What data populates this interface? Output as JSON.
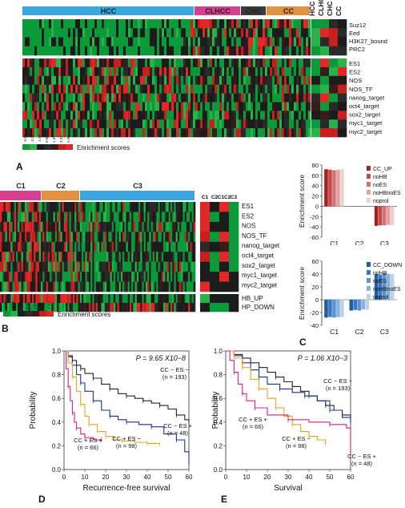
{
  "panel_letters": {
    "a": "A",
    "b": "B",
    "c": "C",
    "d": "D",
    "e": "E"
  },
  "panel_a": {
    "groups": [
      {
        "label": "HCC",
        "color": "#3aa6dd"
      },
      {
        "label": "CLHCC",
        "color": "#d63f8f"
      },
      {
        "label": "CHC",
        "color": "#3a3a3a"
      },
      {
        "label": "CC",
        "color": "#e0913f"
      }
    ],
    "summary_columns": [
      "HCC",
      "CLHCC",
      "CHC",
      "CC"
    ],
    "row_labels_top": [
      "Suz12",
      "Eed",
      "H3K27_bound",
      "PRC2"
    ],
    "row_labels_bottom": [
      "ES1",
      "ES2",
      "NOS",
      "NOS_TF",
      "nanog_target",
      "oct4_target",
      "sox2_target",
      "myc1_target",
      "myc2_target"
    ],
    "scale_ticks": [
      "-5.00",
      "-3.33",
      "-1.67",
      "0.00",
      "1.67",
      "3.33",
      "5.00"
    ],
    "scale_label": "Enrichment scores"
  },
  "panel_b": {
    "groups": [
      {
        "label": "C1",
        "color": "#d63f8f"
      },
      {
        "label": "C2",
        "color": "#e0913f"
      },
      {
        "label": "C3",
        "color": "#3aa6dd"
      }
    ],
    "summary_columns": [
      "C1",
      "C2",
      "C1C2",
      "C3"
    ],
    "row_labels_top": [
      "ES1",
      "ES2",
      "NOS",
      "NOS_TF",
      "nanog_target",
      "oct4_target",
      "sox2_target",
      "myc1_target",
      "myc2_target"
    ],
    "row_labels_bottom": [
      "HB_UP",
      "HP_DOWN"
    ],
    "scale_ticks": [
      "-5.00",
      "-3.33",
      "-1.67",
      "0.00",
      "1.67",
      "3.33",
      "5.00"
    ],
    "scale_label": "Enrichment scores"
  },
  "chart_data": [
    {
      "type": "bar",
      "panel": "C (top)",
      "ylabel": "Enrichment score",
      "ylim": [
        -60,
        80
      ],
      "yticks": [
        -60,
        -40,
        -20,
        0,
        20,
        40,
        60,
        80
      ],
      "categories": [
        "C1",
        "C2",
        "C3"
      ],
      "series": [
        {
          "name": "CC_UP",
          "color": "#a9201f",
          "values": [
            72,
            0,
            -38
          ]
        },
        {
          "name": "noHB",
          "color": "#c04a49",
          "values": [
            71,
            0,
            -37
          ]
        },
        {
          "name": "noES",
          "color": "#cf7472",
          "values": [
            70,
            0,
            -37
          ]
        },
        {
          "name": "noHBnoES",
          "color": "#dea2a0",
          "values": [
            71,
            0,
            -36
          ]
        },
        {
          "name": "noprol",
          "color": "#ecd0ce",
          "values": [
            72,
            0,
            -37
          ]
        }
      ],
      "legend": "top-right"
    },
    {
      "type": "bar",
      "panel": "C (bottom)",
      "ylabel": "Enrichment score",
      "ylim": [
        -40,
        60
      ],
      "yticks": [
        -40,
        -20,
        0,
        20,
        40,
        60
      ],
      "categories": [
        "C1",
        "C2",
        "C3"
      ],
      "series": [
        {
          "name": "CC_DOWN",
          "color": "#1f5fa8",
          "values": [
            -28,
            -17,
            40
          ]
        },
        {
          "name": "noHB",
          "color": "#3a78bf",
          "values": [
            -27,
            -16,
            39
          ]
        },
        {
          "name": "noES",
          "color": "#5b93cf",
          "values": [
            -28,
            -17,
            41
          ]
        },
        {
          "name": "noHBnoES",
          "color": "#8ab1dc",
          "values": [
            -27,
            -15,
            40
          ]
        },
        {
          "name": "noprol",
          "color": "#bcd2ea",
          "values": [
            -27,
            -16,
            40
          ]
        }
      ],
      "legend": "top-right"
    },
    {
      "type": "line",
      "panel": "D",
      "xlabel": "Recurrence-free survival",
      "ylabel": "Probability",
      "xlim": [
        0,
        60
      ],
      "ylim": [
        0,
        1
      ],
      "xticks": [
        0,
        10,
        20,
        30,
        40,
        50,
        60
      ],
      "yticks": [
        0.0,
        0.2,
        0.4,
        0.6,
        0.8,
        1.0
      ],
      "p_value": "P = 9.65 X10−8",
      "series": [
        {
          "name": "CC − ES −",
          "n": "(n = 193)",
          "color": "#222222",
          "x": [
            0,
            2,
            4,
            6,
            8,
            10,
            14,
            18,
            22,
            26,
            30,
            34,
            38,
            42,
            46,
            50,
            54,
            58,
            60
          ],
          "y": [
            1.0,
            0.96,
            0.92,
            0.88,
            0.85,
            0.81,
            0.77,
            0.72,
            0.68,
            0.64,
            0.62,
            0.6,
            0.58,
            0.56,
            0.54,
            0.51,
            0.46,
            0.42,
            0.4
          ]
        },
        {
          "name": "CC − ES +",
          "n": "(n = 48)",
          "color": "#1a2e9a",
          "x": [
            0,
            2,
            4,
            6,
            8,
            10,
            14,
            18,
            22,
            26,
            30,
            36,
            42,
            48,
            54,
            58,
            60
          ],
          "y": [
            1.0,
            0.95,
            0.88,
            0.8,
            0.73,
            0.66,
            0.58,
            0.5,
            0.45,
            0.42,
            0.4,
            0.38,
            0.36,
            0.3,
            0.25,
            0.15,
            0.05
          ]
        },
        {
          "name": "CC + ES −",
          "n": "(n = 98)",
          "color": "#e8a21a",
          "x": [
            0,
            2,
            4,
            6,
            8,
            10,
            12,
            16,
            20,
            24,
            28,
            34,
            40,
            46
          ],
          "y": [
            1.0,
            0.9,
            0.78,
            0.66,
            0.55,
            0.45,
            0.38,
            0.32,
            0.28,
            0.25,
            0.24,
            0.23,
            0.22,
            0.2
          ]
        },
        {
          "name": "CC + ES +",
          "n": "(n = 66)",
          "color": "#d81e7a",
          "x": [
            0,
            1,
            2,
            3,
            4,
            5,
            6,
            8,
            10,
            14,
            18
          ],
          "y": [
            1.0,
            0.85,
            0.7,
            0.58,
            0.48,
            0.4,
            0.35,
            0.3,
            0.27,
            0.25,
            0.25
          ]
        }
      ]
    },
    {
      "type": "line",
      "panel": "E",
      "xlabel": "Survival",
      "ylabel": "Probability",
      "xlim": [
        0,
        60
      ],
      "ylim": [
        0,
        1
      ],
      "xticks": [
        0,
        10,
        20,
        30,
        40,
        50,
        60
      ],
      "yticks": [
        0.0,
        0.2,
        0.4,
        0.6,
        0.8,
        1.0
      ],
      "p_value": "P = 1.06 X10−3",
      "series": [
        {
          "name": "CC − ES −",
          "n": "(n = 193)",
          "color": "#222222",
          "x": [
            0,
            4,
            8,
            12,
            16,
            20,
            24,
            28,
            32,
            36,
            40,
            44,
            48,
            52,
            56,
            60
          ],
          "y": [
            1.0,
            0.97,
            0.94,
            0.9,
            0.86,
            0.82,
            0.78,
            0.74,
            0.7,
            0.66,
            0.62,
            0.58,
            0.54,
            0.5,
            0.46,
            0.42
          ]
        },
        {
          "name": "CC − ES +",
          "n": "(n = 48)",
          "color": "#1a2e9a",
          "x": [
            0,
            4,
            8,
            12,
            16,
            20,
            26,
            32,
            38,
            44,
            50,
            56,
            60
          ],
          "y": [
            1.0,
            0.96,
            0.9,
            0.84,
            0.78,
            0.72,
            0.68,
            0.65,
            0.62,
            0.58,
            0.5,
            0.44,
            0.4
          ]
        },
        {
          "name": "CC + ES −",
          "n": "(n = 98)",
          "color": "#e8a21a",
          "x": [
            0,
            4,
            8,
            12,
            16,
            20,
            24,
            28,
            32,
            36,
            40,
            44,
            48
          ],
          "y": [
            1.0,
            0.94,
            0.86,
            0.76,
            0.68,
            0.6,
            0.52,
            0.45,
            0.38,
            0.32,
            0.28,
            0.25,
            0.22
          ]
        },
        {
          "name": "CC + ES +",
          "n": "(n = 66)",
          "color": "#d81e7a",
          "x": [
            0,
            2,
            4,
            6,
            8,
            10,
            14,
            20,
            30,
            40,
            50,
            58,
            60
          ],
          "y": [
            1.0,
            0.92,
            0.82,
            0.72,
            0.64,
            0.58,
            0.52,
            0.46,
            0.42,
            0.4,
            0.38,
            0.35,
            0.12
          ]
        }
      ]
    }
  ]
}
